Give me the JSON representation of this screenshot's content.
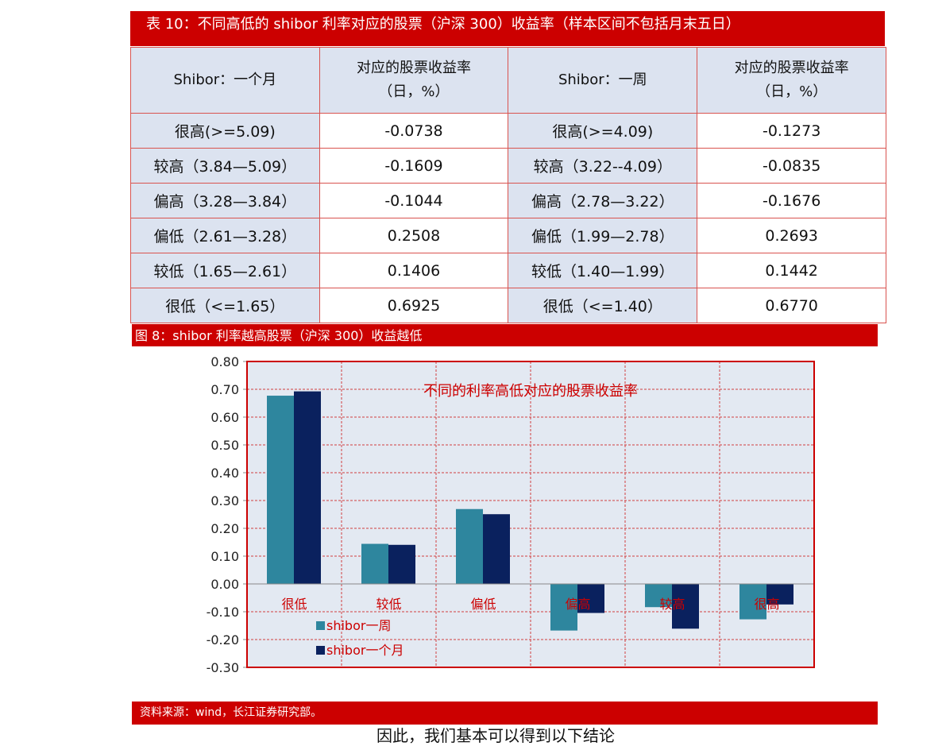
{
  "table_title": "表 10：不同高低的 shibor 利率对应的股票（沪深 300）收益率（样本区间不包括月末五日）",
  "table": {
    "headers": [
      "Shibor：一个月",
      "对应的股票收益率（日，%）",
      "Shibor：一周",
      "对应的股票收益率（日，%）"
    ],
    "header_lines": [
      [
        "Shibor：一个月"
      ],
      [
        "对应的股票收益率",
        "（日，%）"
      ],
      [
        "Shibor：一周"
      ],
      [
        "对应的股票收益率",
        "（日，%）"
      ]
    ],
    "rows": [
      [
        "很高(>=5.09)",
        "-0.0738",
        "很高(>=4.09)",
        "-0.1273"
      ],
      [
        "较高（3.84—5.09）",
        "-0.1609",
        "较高（3.22--4.09）",
        "-0.0835"
      ],
      [
        "偏高（3.28—3.84）",
        "-0.1044",
        "偏高（2.78—3.22）",
        "-0.1676"
      ],
      [
        "偏低（2.61—3.28）",
        "0.2508",
        "偏低（1.99—2.78）",
        "0.2693"
      ],
      [
        "较低（1.65—2.61）",
        "0.1406",
        "较低（1.40—1.99）",
        "0.1442"
      ],
      [
        "很低（<=1.65）",
        "0.6925",
        "很低（<=1.40）",
        "0.6770"
      ]
    ]
  },
  "figure_caption": "图 8：shibor 利率越高股票（沪深 300）收益越低",
  "source": "资料来源：wind，长江证券研究部。",
  "tail_text": "因此，我们基本可以得到以下结论",
  "colors": {
    "accent": "#CC0000",
    "header_bg": "#DCE3F0",
    "weekly": "#2E869E",
    "monthly": "#0A215E"
  },
  "chart_data": {
    "type": "bar",
    "title": "不同的利率高低对应的股票收益率",
    "categories": [
      "很低",
      "较低",
      "偏低",
      "偏高",
      "较高",
      "很高"
    ],
    "series": [
      {
        "name": "shibor一周",
        "values": [
          0.677,
          0.1442,
          0.2693,
          -0.1676,
          -0.0835,
          -0.1273
        ],
        "color": "#2E869E"
      },
      {
        "name": "shibor一个月",
        "values": [
          0.6925,
          0.1406,
          0.2508,
          -0.1044,
          -0.1609,
          -0.0738
        ],
        "color": "#0A215E"
      }
    ],
    "ylim": [
      -0.3,
      0.8
    ],
    "yticks": [
      "0.80",
      "0.70",
      "0.60",
      "0.50",
      "0.40",
      "0.30",
      "0.20",
      "0.10",
      "0.00",
      "-0.10",
      "-0.20",
      "-0.30"
    ],
    "grid": true,
    "legend": "bottom-left inside"
  }
}
